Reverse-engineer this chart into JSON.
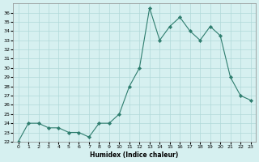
{
  "x": [
    0,
    1,
    2,
    3,
    4,
    5,
    6,
    7,
    8,
    9,
    10,
    11,
    12,
    13,
    14,
    15,
    16,
    17,
    18,
    19,
    20,
    21,
    22,
    23
  ],
  "y": [
    22.0,
    24.0,
    24.0,
    23.5,
    23.5,
    23.0,
    23.0,
    22.5,
    24.0,
    24.0,
    25.0,
    28.0,
    30.0,
    36.5,
    33.0,
    34.5,
    35.5,
    34.0,
    33.0,
    34.5,
    33.5,
    29.0,
    27.0,
    26.5
  ],
  "xlabel": "Humidex (Indice chaleur)",
  "ylim": [
    22,
    37
  ],
  "xlim": [
    -0.5,
    23.5
  ],
  "yticks": [
    22,
    23,
    24,
    25,
    26,
    27,
    28,
    29,
    30,
    31,
    32,
    33,
    34,
    35,
    36
  ],
  "xticks": [
    0,
    1,
    2,
    3,
    4,
    5,
    6,
    7,
    8,
    9,
    10,
    11,
    12,
    13,
    14,
    15,
    16,
    17,
    18,
    19,
    20,
    21,
    22,
    23
  ],
  "line_color": "#2e7d6e",
  "marker_color": "#2e7d6e",
  "bg_color": "#d6f0f0",
  "grid_color": "#b0d8d8"
}
